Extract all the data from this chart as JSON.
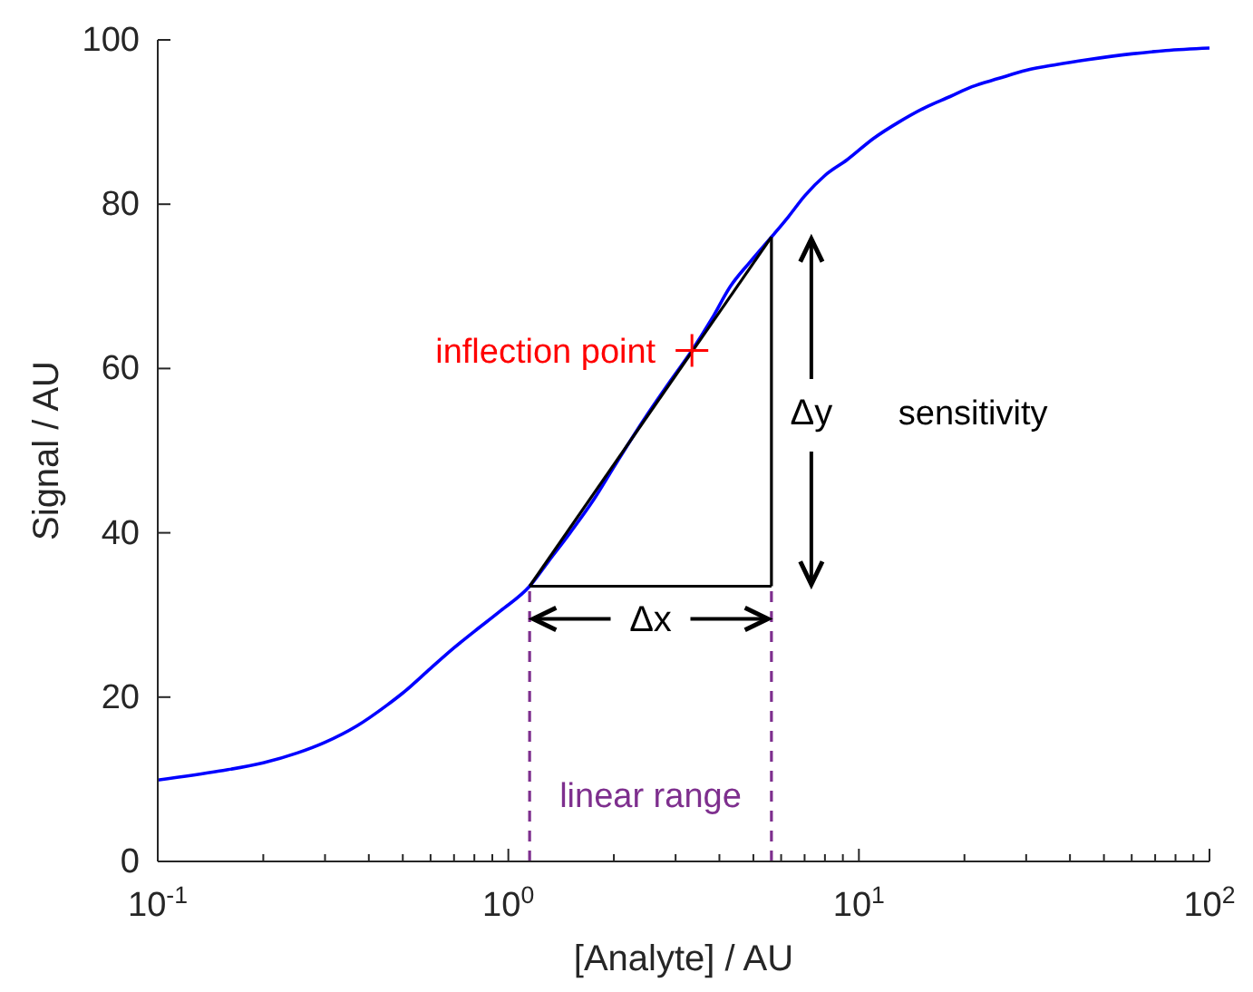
{
  "chart_data": {
    "type": "line",
    "xlabel": "[Analyte] / AU",
    "ylabel": "Signal / AU",
    "log": "x",
    "xlim": [
      0.1,
      100
    ],
    "ylim": [
      0,
      100
    ],
    "xticks": [
      {
        "value": 0.1,
        "label": "10$^{-1}$"
      },
      {
        "value": 0.2,
        "label": null
      },
      {
        "value": 0.3,
        "label": null
      },
      {
        "value": 0.4,
        "label": null
      },
      {
        "value": 0.5,
        "label": null
      },
      {
        "value": 0.6,
        "label": null
      },
      {
        "value": 0.7,
        "label": null
      },
      {
        "value": 0.8,
        "label": null
      },
      {
        "value": 0.9,
        "label": null
      },
      {
        "value": 1,
        "label": "10$^{0}$"
      },
      {
        "value": 2,
        "label": null
      },
      {
        "value": 3,
        "label": null
      },
      {
        "value": 4,
        "label": null
      },
      {
        "value": 5,
        "label": null
      },
      {
        "value": 6,
        "label": null
      },
      {
        "value": 7,
        "label": null
      },
      {
        "value": 8,
        "label": null
      },
      {
        "value": 9,
        "label": null
      },
      {
        "value": 10,
        "label": "10$^{1}$"
      },
      {
        "value": 20,
        "label": null
      },
      {
        "value": 30,
        "label": null
      },
      {
        "value": 40,
        "label": null
      },
      {
        "value": 50,
        "label": null
      },
      {
        "value": 60,
        "label": null
      },
      {
        "value": 70,
        "label": null
      },
      {
        "value": 80,
        "label": null
      },
      {
        "value": 90,
        "label": null
      },
      {
        "value": 100,
        "label": "10$^{2}$"
      }
    ],
    "yticks": [
      0,
      20,
      40,
      60,
      80,
      100
    ],
    "grid": false,
    "legend": false,
    "marker": "none",
    "line_style": "solid",
    "series": [
      {
        "type": "line",
        "color": "#0000ff",
        "x": [
          0.1,
          0.15,
          0.2,
          0.25,
          0.3,
          0.37,
          0.45,
          0.5,
          0.6,
          0.7,
          0.8,
          0.95,
          1.15,
          1.3,
          1.5,
          1.75,
          2,
          2.25,
          2.5,
          2.9,
          3.34,
          3.8,
          4.3,
          4.9,
          5.63,
          6.3,
          7,
          8,
          9.25,
          11,
          13,
          15.5,
          18.2,
          21,
          25,
          30,
          36.6,
          45,
          60,
          75,
          100
        ],
        "values": [
          9.9,
          11,
          12,
          13.2,
          14.5,
          16.5,
          19,
          20.5,
          23.5,
          26,
          28,
          30.5,
          33.5,
          36.5,
          40,
          44,
          48,
          51.5,
          54.5,
          58.5,
          62.2,
          66,
          70,
          73,
          76,
          78.5,
          81,
          83.5,
          85.4,
          88,
          90,
          91.8,
          93.1,
          94.3,
          95.3,
          96.3,
          97,
          97.6,
          98.3,
          98.7,
          99
        ]
      },
      {
        "type": "line",
        "color": "#000000",
        "x": [
          1.15,
          5.63
        ],
        "values": [
          33.5,
          76
        ]
      },
      {
        "type": "line",
        "color": "#000000",
        "x": [
          1.15,
          5.63
        ],
        "values": [
          33.5,
          33.5
        ]
      },
      {
        "type": "line",
        "color": "#000000",
        "x": [
          5.63,
          5.63
        ],
        "values": [
          33.5,
          76
        ]
      },
      {
        "type": "scatter",
        "color": "#ff0000",
        "marker": "cross",
        "x": [
          3.34
        ],
        "values": [
          62.2
        ]
      },
      {
        "type": "line",
        "color": "#7e2f8e",
        "line_style": "dashed",
        "x": [
          1.15,
          1.15
        ],
        "values": [
          0,
          33.5
        ]
      },
      {
        "type": "line",
        "color": "#7e2f8e",
        "line_style": "dashed",
        "x": [
          5.63,
          5.63
        ],
        "values": [
          0,
          33.5
        ]
      }
    ],
    "annotations": [
      {
        "text": "inflection point",
        "x": 3.34,
        "y": 62.2
      },
      {
        "text": "Δx",
        "x": 5.63,
        "y": 33.5
      },
      "Δy",
      "sensitivity",
      "linear range"
    ]
  }
}
